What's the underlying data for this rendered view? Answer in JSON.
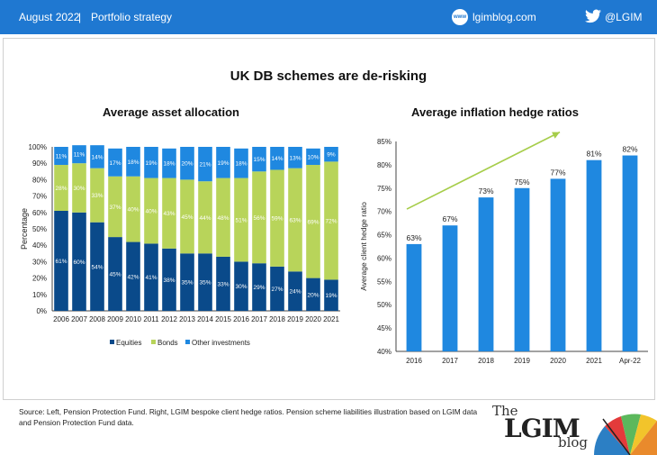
{
  "header": {
    "date": "August 2022",
    "section": "Portfolio strategy",
    "site_icon_label": "www",
    "site": "lgimblog.com",
    "handle": "@LGIM"
  },
  "title": "UK DB schemes are de-risking",
  "footer": {
    "source": "Source: Left, Pension Protection Fund. Right, LGIM  bespoke client hedge ratios. Pension scheme liabilities illustration based on LGIM data and Pension Protection Fund data."
  },
  "logo": {
    "the": "The",
    "lgim": "LGIM",
    "blog": "blog"
  },
  "colors": {
    "equities": "#0a4a8a",
    "bonds": "#b8d45a",
    "other": "#1f88e0",
    "hedge_bar": "#1f88e0",
    "arrow": "#a6cd4a",
    "header": "#1f78d1"
  },
  "chart_data": [
    {
      "type": "bar",
      "stacked": true,
      "title": "Average asset allocation",
      "xlabel": "",
      "ylabel": "Percentage",
      "ylim": [
        0,
        100
      ],
      "yticks": [
        "0%",
        "10%",
        "20%",
        "30%",
        "40%",
        "50%",
        "60%",
        "70%",
        "80%",
        "90%",
        "100%"
      ],
      "categories": [
        "2006",
        "2007",
        "2008",
        "2009",
        "2010",
        "2011",
        "2012",
        "2013",
        "2014",
        "2015",
        "2016",
        "2017",
        "2018",
        "2019",
        "2020",
        "2021"
      ],
      "series": [
        {
          "name": "Equities",
          "values": [
            61,
            60,
            54,
            45,
            42,
            41,
            38,
            35,
            35,
            33,
            30,
            29,
            27,
            24,
            20,
            19
          ],
          "labels": [
            "61%",
            "60%",
            "54%",
            "45%",
            "42%",
            "41%",
            "38%",
            "35%",
            "35%",
            "33%",
            "30%",
            "29%",
            "27%",
            "24%",
            "20%",
            "19%"
          ]
        },
        {
          "name": "Bonds",
          "values": [
            28,
            30,
            33,
            37,
            40,
            40,
            43,
            45,
            44,
            48,
            51,
            56,
            59,
            63,
            69,
            72
          ],
          "labels": [
            "28%",
            "30%",
            "33%",
            "37%",
            "40%",
            "40%",
            "43%",
            "45%",
            "44%",
            "48%",
            "51%",
            "56%",
            "59%",
            "63%",
            "69%",
            "72%"
          ]
        },
        {
          "name": "Other investments",
          "values": [
            11,
            11,
            14,
            17,
            18,
            19,
            18,
            20,
            21,
            19,
            18,
            15,
            14,
            13,
            10,
            9
          ],
          "labels": [
            "11%",
            "11%",
            "14%",
            "17%",
            "18%",
            "19%",
            "18%",
            "20%",
            "21%",
            "19%",
            "18%",
            "15%",
            "14%",
            "13%",
            "10%",
            "9%"
          ]
        }
      ],
      "legend": "bottom"
    },
    {
      "type": "bar",
      "title": "Average inflation hedge ratios",
      "xlabel": "",
      "ylabel": "Average  client hedge  ratio",
      "ylim": [
        40,
        85
      ],
      "yticks": [
        "40%",
        "45%",
        "50%",
        "55%",
        "60%",
        "65%",
        "70%",
        "75%",
        "80%",
        "85%"
      ],
      "categories": [
        "2016",
        "2017",
        "2018",
        "2019",
        "2020",
        "2021",
        "Apr-22"
      ],
      "values": [
        63,
        67,
        73,
        75,
        77,
        81,
        82
      ],
      "labels": [
        "63%",
        "67%",
        "73%",
        "75%",
        "77%",
        "81%",
        "82%"
      ],
      "trend_arrow": true
    }
  ]
}
